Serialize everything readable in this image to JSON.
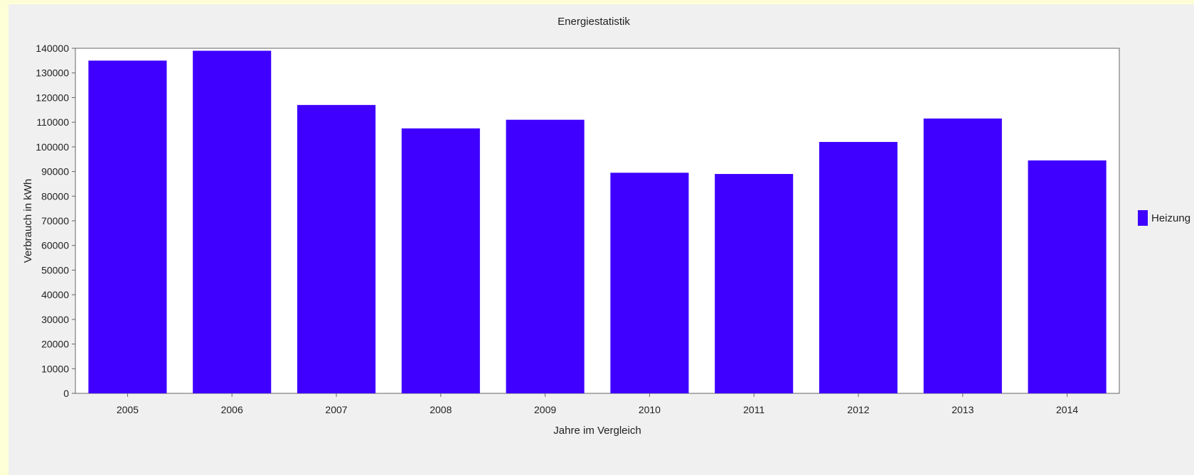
{
  "chart_data": {
    "type": "bar",
    "title": "Energiestatistik",
    "xlabel": "Jahre im Vergleich",
    "ylabel": "Verbrauch in kWh",
    "categories": [
      "2005",
      "2006",
      "2007",
      "2008",
      "2009",
      "2010",
      "2011",
      "2012",
      "2013",
      "2014"
    ],
    "series": [
      {
        "name": "Heizung",
        "color": "#3f00ff",
        "values": [
          135000,
          139000,
          117000,
          107500,
          111000,
          89500,
          89000,
          102000,
          111500,
          94500
        ]
      }
    ],
    "ylim": [
      0,
      140000
    ],
    "yticks": [
      0,
      10000,
      20000,
      30000,
      40000,
      50000,
      60000,
      70000,
      80000,
      90000,
      100000,
      110000,
      120000,
      130000,
      140000
    ],
    "grid": false,
    "legend_position": "right"
  }
}
